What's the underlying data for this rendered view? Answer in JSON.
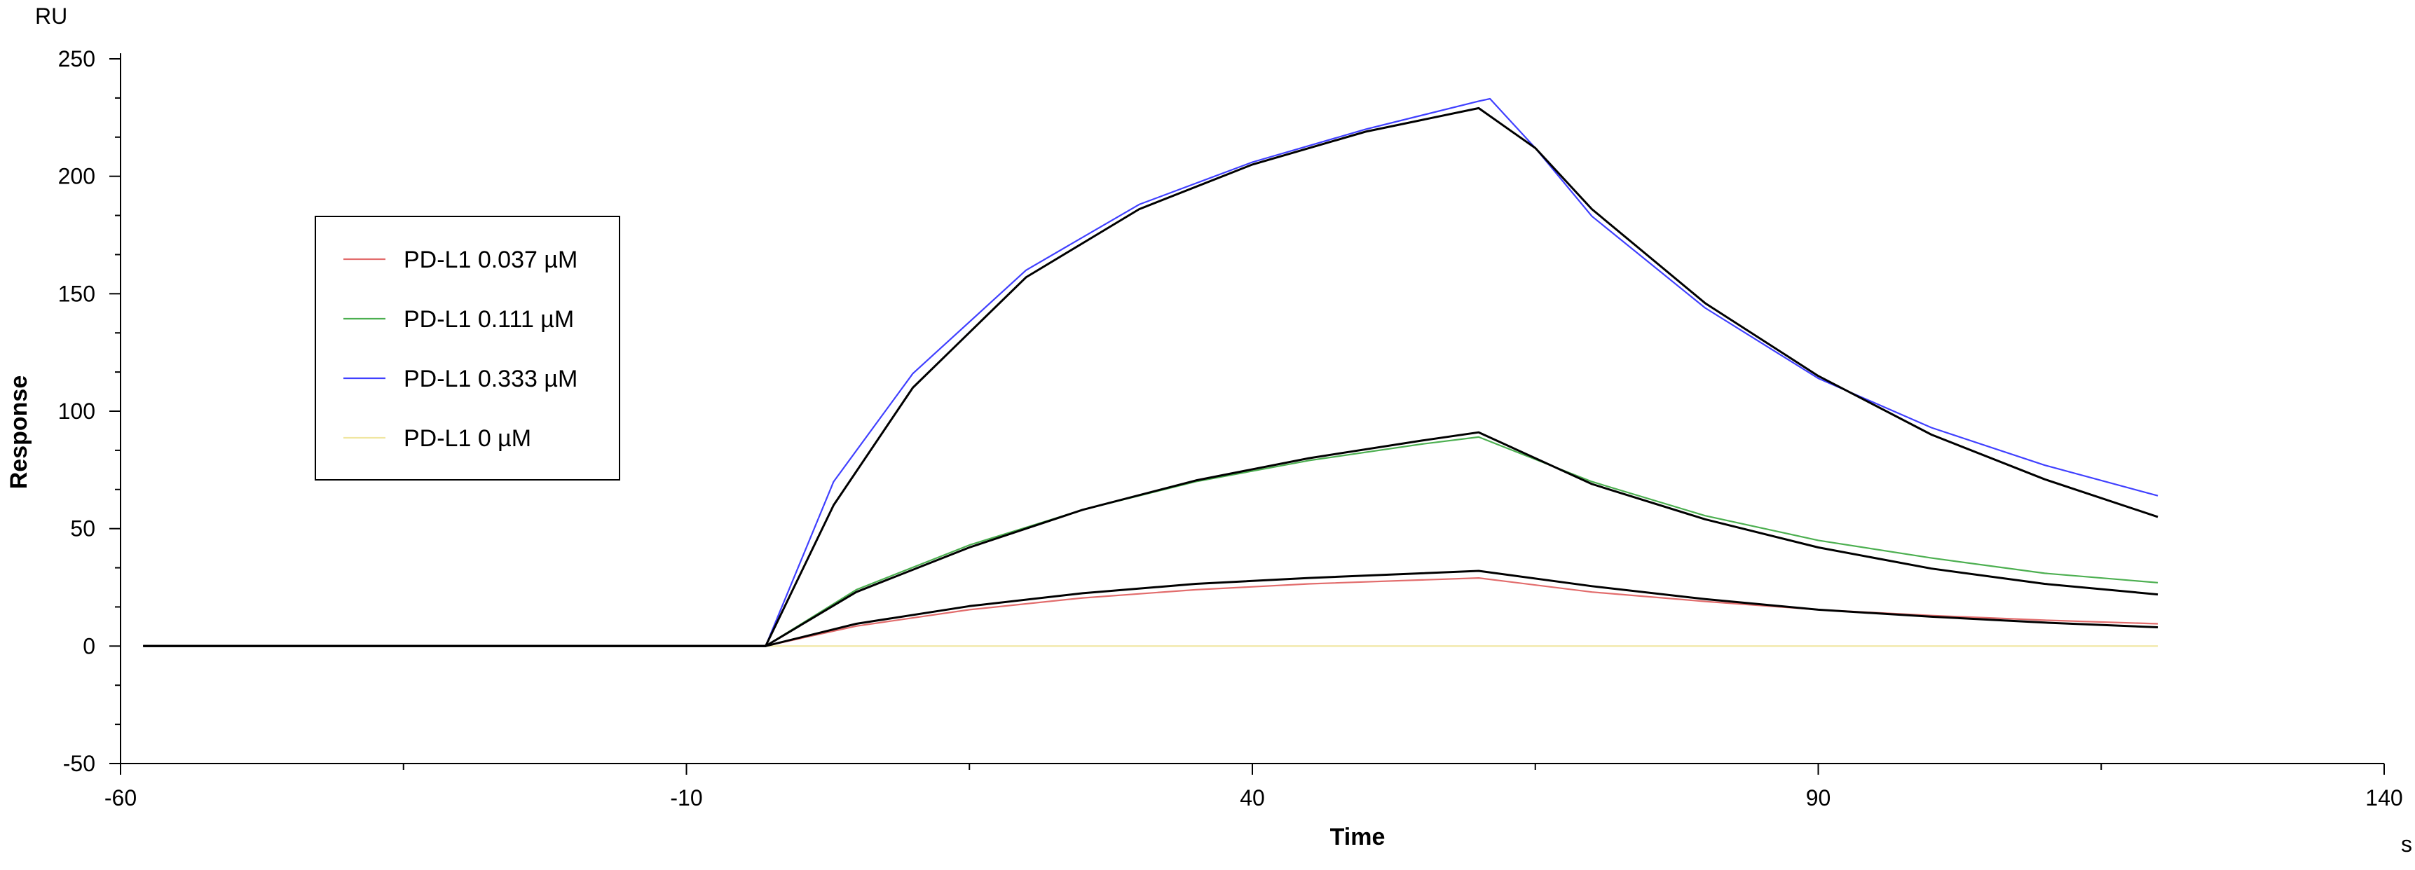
{
  "chart_data": {
    "type": "line",
    "y_unit": "RU",
    "x_unit": "s",
    "xlabel": "Time",
    "ylabel": "Response",
    "xlim": [
      -60,
      140
    ],
    "ylim": [
      -50,
      250
    ],
    "x_ticks": [
      -60,
      -10,
      40,
      90,
      140
    ],
    "x_tick_labels": [
      "-60",
      "-10",
      "40",
      "90",
      "140"
    ],
    "y_ticks": [
      -50,
      0,
      50,
      100,
      150,
      200,
      250
    ],
    "y_tick_labels": [
      "-50",
      "0",
      "50",
      "100",
      "150",
      "200",
      "250"
    ],
    "grid": false,
    "legend_placement": "upper-left",
    "kinetics": {
      "baseline_start": -58,
      "injection_start": -3,
      "dissociation_start": 60,
      "end": 120
    },
    "series": [
      {
        "name": "PD-L1  0.037 µM",
        "color": "#e26c6c",
        "points": [
          [
            -58,
            0
          ],
          [
            -3,
            0
          ],
          [
            5,
            8.5
          ],
          [
            15,
            15.5
          ],
          [
            25,
            20.5
          ],
          [
            35,
            24
          ],
          [
            45,
            26.5
          ],
          [
            60,
            29
          ],
          [
            70,
            23
          ],
          [
            80,
            19
          ],
          [
            90,
            15.5
          ],
          [
            100,
            13
          ],
          [
            110,
            11
          ],
          [
            120,
            9.5
          ]
        ],
        "fit": [
          [
            -58,
            0
          ],
          [
            -3,
            0
          ],
          [
            5,
            9.5
          ],
          [
            15,
            17
          ],
          [
            25,
            22.5
          ],
          [
            35,
            26.5
          ],
          [
            45,
            29
          ],
          [
            60,
            32
          ],
          [
            70,
            25.5
          ],
          [
            80,
            20
          ],
          [
            90,
            15.5
          ],
          [
            100,
            12.5
          ],
          [
            110,
            10
          ],
          [
            120,
            8
          ]
        ]
      },
      {
        "name": "PD-L1  0.111 µM",
        "color": "#4caf50",
        "points": [
          [
            -58,
            0
          ],
          [
            -3,
            0
          ],
          [
            5,
            24
          ],
          [
            15,
            43
          ],
          [
            25,
            58
          ],
          [
            35,
            70
          ],
          [
            45,
            79
          ],
          [
            55,
            86
          ],
          [
            60,
            89
          ],
          [
            70,
            70
          ],
          [
            80,
            55.5
          ],
          [
            90,
            45
          ],
          [
            100,
            37.5
          ],
          [
            110,
            31
          ],
          [
            120,
            27
          ]
        ],
        "fit": [
          [
            -58,
            0
          ],
          [
            -3,
            0
          ],
          [
            5,
            23
          ],
          [
            15,
            42
          ],
          [
            25,
            58
          ],
          [
            35,
            70.5
          ],
          [
            45,
            80
          ],
          [
            55,
            87.5
          ],
          [
            60,
            91
          ],
          [
            70,
            69
          ],
          [
            80,
            54
          ],
          [
            90,
            42
          ],
          [
            100,
            33
          ],
          [
            110,
            26.5
          ],
          [
            120,
            22
          ]
        ]
      },
      {
        "name": "PD-L1  0.333 µM",
        "color": "#4040ff",
        "points": [
          [
            -58,
            0
          ],
          [
            -3,
            0
          ],
          [
            3,
            70
          ],
          [
            10,
            116
          ],
          [
            20,
            160
          ],
          [
            30,
            188
          ],
          [
            40,
            206
          ],
          [
            50,
            220
          ],
          [
            60,
            232
          ],
          [
            61,
            233
          ],
          [
            65,
            212
          ],
          [
            70,
            183
          ],
          [
            80,
            144
          ],
          [
            90,
            114
          ],
          [
            100,
            93
          ],
          [
            110,
            77
          ],
          [
            120,
            64
          ]
        ],
        "fit": [
          [
            -58,
            0
          ],
          [
            -3,
            0
          ],
          [
            3,
            60
          ],
          [
            10,
            110
          ],
          [
            20,
            157
          ],
          [
            30,
            186
          ],
          [
            40,
            205
          ],
          [
            50,
            219
          ],
          [
            60,
            229
          ],
          [
            65,
            212
          ],
          [
            70,
            186
          ],
          [
            80,
            146
          ],
          [
            90,
            115
          ],
          [
            100,
            90
          ],
          [
            110,
            71
          ],
          [
            120,
            55
          ]
        ]
      },
      {
        "name": "PD-L1  0 µM",
        "color": "#f0e6a0",
        "points": [
          [
            -58,
            0
          ],
          [
            -3,
            0
          ],
          [
            30,
            0
          ],
          [
            60,
            0
          ],
          [
            90,
            0
          ],
          [
            120,
            0
          ]
        ],
        "fit": []
      }
    ]
  }
}
